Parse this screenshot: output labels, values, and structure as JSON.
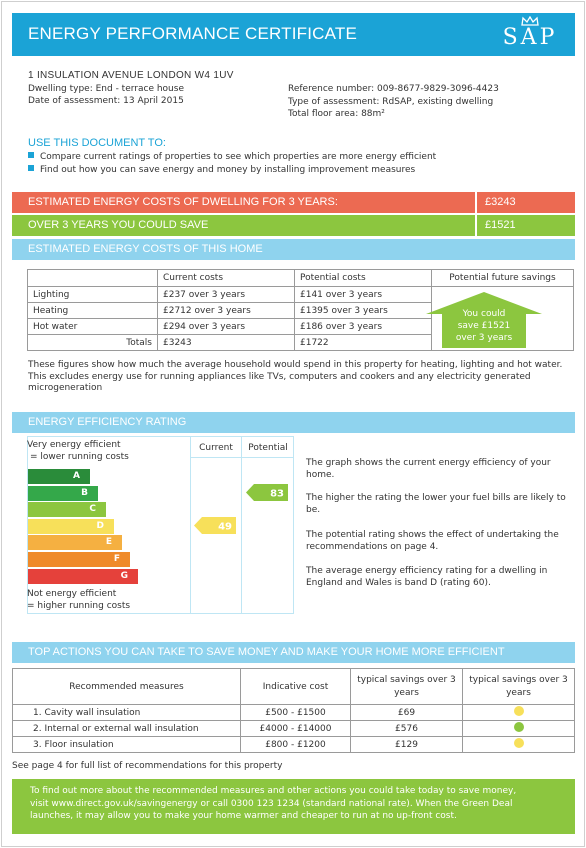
{
  "header": {
    "title": "ENERGY PERFORMANCE CERTIFICATE",
    "logo_text": "SAP"
  },
  "address": {
    "line": "1 INSULATION AVENUE LONDON W4 1UV",
    "dwelling_type": "Dwelling type: End - terrace house",
    "date": "Date of assessment: 13 April 2015",
    "reference": "Reference number: 009-8677-9829-3096-4423",
    "assessment_type": "Type of assessment: RdSAP, existing dwelling",
    "floor_area": "Total floor area: 88m²"
  },
  "use_doc": {
    "title": "USE THIS DOCUMENT TO:",
    "bullets": [
      "Compare current ratings of properties to see which properties are more energy efficient",
      "Find out how you can save energy and money by installing improvement measures"
    ]
  },
  "cost_bars": {
    "estimated_label": "ESTIMATED ENERGY COSTS OF DWELLING FOR 3 YEARS:",
    "estimated_value": "£3243",
    "savings_label": "OVER 3 YEARS YOU COULD SAVE",
    "savings_value": "£1521",
    "section_title": "ESTIMATED ENERGY COSTS OF THIS HOME"
  },
  "cost_table": {
    "headers": [
      "",
      "Current costs",
      "Potential costs",
      "Potential future savings"
    ],
    "rows": [
      {
        "label": "Lighting",
        "current": "£237 over 3 years",
        "potential": "£141 over 3 years"
      },
      {
        "label": "Heating",
        "current": "£2712 over 3 years",
        "potential": "£1395 over 3 years"
      },
      {
        "label": "Hot water",
        "current": "£294 over 3 years",
        "potential": "£186 over 3 years"
      }
    ],
    "totals": {
      "label": "Totals",
      "current": "£3243",
      "potential": "£1722"
    },
    "arrow_lines": [
      "You could",
      "save £1521",
      "over 3 years"
    ]
  },
  "cost_note": "These figures show how much the average household would spend in this property for heating, lighting and hot water. This excludes energy use for running appliances like TVs, computers and cookers and any electricity generated microgeneration",
  "efficiency": {
    "section_title": "ENERGY EFFICIENCY RATING",
    "top_label_1": "Very energy efficient",
    "top_label_2": "= lower running costs",
    "bottom_label_1": "Not energy efficient",
    "bottom_label_2": "= higher running costs",
    "col_current": "Current",
    "col_potential": "Potential",
    "bands": [
      {
        "letter": "A",
        "color": "#2a8c3a"
      },
      {
        "letter": "B",
        "color": "#34a84a"
      },
      {
        "letter": "C",
        "color": "#8cc63f"
      },
      {
        "letter": "D",
        "color": "#f7e05a"
      },
      {
        "letter": "E",
        "color": "#f5b041"
      },
      {
        "letter": "F",
        "color": "#ef8a2a"
      },
      {
        "letter": "G",
        "color": "#e5413b"
      }
    ],
    "current_rating": "49",
    "potential_rating": "83",
    "current_color": "#f7e05a",
    "potential_color": "#8cc63f",
    "text": [
      "The graph shows the current energy efficiency of your home.",
      "The higher the rating the lower your fuel bills are likely to be.",
      "The potential rating shows the effect of undertaking the recommendations on page 4.",
      "The average energy efficiency rating for a dwelling in England and Wales is band D (rating 60)."
    ]
  },
  "actions": {
    "section_title": "TOP ACTIONS YOU CAN TAKE TO SAVE MONEY AND MAKE YOUR HOME MORE EFFICIENT",
    "headers": [
      "Recommended measures",
      "Indicative cost",
      "typical savings over 3 years",
      "typical savings over 3 years"
    ],
    "rows": [
      {
        "measure": "1. Cavity wall insulation",
        "cost": "£500 - £1500",
        "saving": "£69",
        "dot_color": "#f7e05a"
      },
      {
        "measure": "2. Internal or external wall insulation",
        "cost": "£4000 - £14000",
        "saving": "£576",
        "dot_color": "#8cc63f"
      },
      {
        "measure": "3. Floor insulation",
        "cost": "£800 - £1200",
        "saving": "£129",
        "dot_color": "#f7e05a"
      }
    ],
    "see_note": "See page 4 for full list of recommendations for this property"
  },
  "footer": {
    "line1": "To find out more about the recommended measures and other actions you could take today to save money,",
    "line2": "visit www.direct.gov.uk/savingenergy or call 0300 123 1234 (standard national rate). When the Green Deal",
    "line3": "launches, it may allow you to make your home warmer and cheaper to run at no up-front cost."
  },
  "colors": {
    "accent": "#1ba3d6",
    "red_bar": "#ec6a52",
    "green_bar": "#8cc63f",
    "light_blue": "#8fd3ee"
  }
}
